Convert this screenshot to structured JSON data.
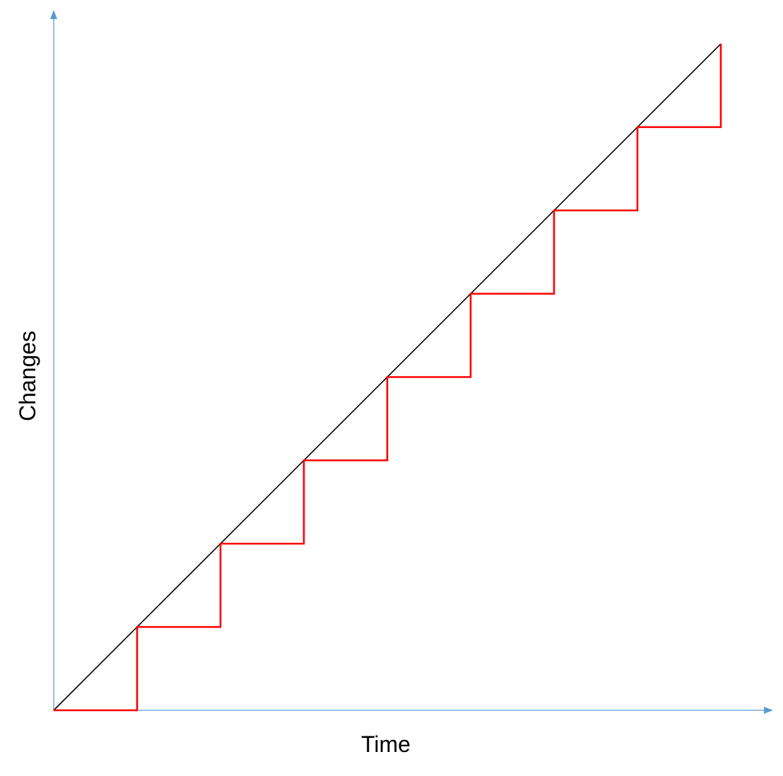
{
  "chart_data": {
    "type": "line",
    "title": "",
    "xlabel": "Time",
    "ylabel": "Changes",
    "axes": {
      "ticks": "none",
      "grid": false,
      "arrowheads": true
    },
    "xlim": [
      0,
      8
    ],
    "ylim": [
      0,
      8
    ],
    "series": [
      {
        "style": "straight-diagonal",
        "x": [
          0,
          8
        ],
        "y": [
          0,
          8
        ]
      },
      {
        "style": "staircase",
        "x": [
          0,
          1,
          1,
          2,
          2,
          3,
          3,
          4,
          4,
          5,
          5,
          6,
          6,
          7,
          7,
          8,
          8
        ],
        "y": [
          0,
          0,
          1,
          1,
          2,
          2,
          3,
          3,
          4,
          4,
          5,
          5,
          6,
          6,
          7,
          7,
          8
        ]
      }
    ]
  },
  "colors": {
    "axis": "#5b9bd5",
    "diagonal": "#000000",
    "staircase": "#ff0000"
  }
}
